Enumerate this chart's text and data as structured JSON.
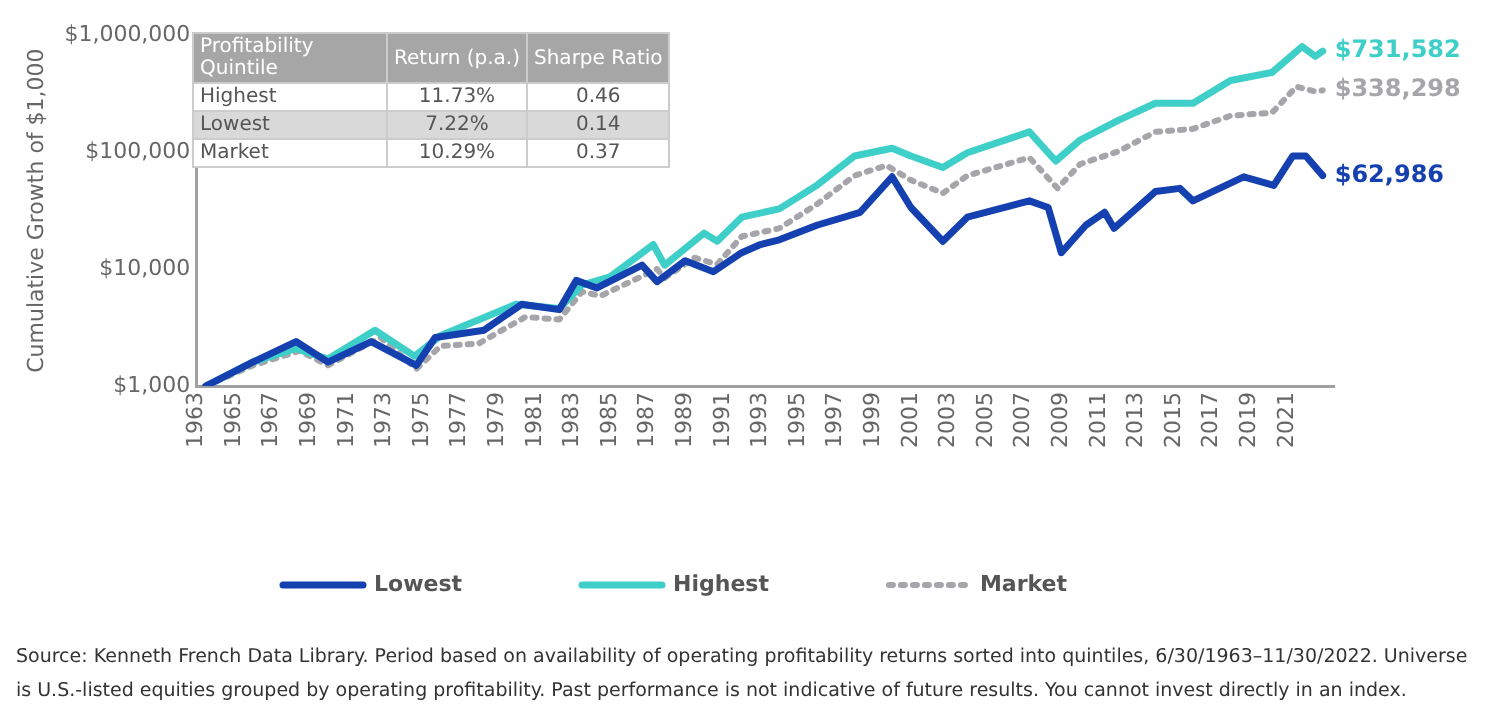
{
  "chart_data": {
    "type": "line",
    "ylabel": "Cumulative Growth of $1,000",
    "log": "y",
    "grid": false,
    "legend": "bottom",
    "marker": "none",
    "xlim": [
      1963,
      2023.5
    ],
    "xticks": [
      1963,
      1965,
      1967,
      1969,
      1971,
      1973,
      1975,
      1977,
      1979,
      1981,
      1983,
      1985,
      1987,
      1989,
      1991,
      1993,
      1995,
      1997,
      1999,
      2001,
      2003,
      2005,
      2007,
      2009,
      2011,
      2013,
      2015,
      2017,
      2019,
      2021
    ],
    "ylim": [
      1000,
      1000000
    ],
    "yticks": [
      {
        "value": 1000,
        "label": "$1,000"
      },
      {
        "value": 10000,
        "label": "$10,000"
      },
      {
        "value": 100000,
        "label": "$100,000"
      },
      {
        "value": 1000000,
        "label": "$1,000,000"
      }
    ],
    "series": [
      {
        "name": "Lowest",
        "color": "#1440b0",
        "line_style": "solid",
        "x": [
          1963.5,
          1966,
          1968.3,
          1970,
          1972.3,
          1974.7,
          1975.7,
          1978.3,
          1980.3,
          1982.3,
          1983.2,
          1984.3,
          1986.7,
          1987.5,
          1989,
          1990.5,
          1992,
          1993,
          1994,
          1996,
          1998.3,
          2000,
          2001,
          2002.7,
          2004,
          2007.3,
          2008.3,
          2009,
          2010.3,
          2011.3,
          2011.8,
          2014,
          2015.3,
          2016,
          2018.7,
          2020.3,
          2021.3,
          2022,
          2022.9
        ],
        "values": [
          1000,
          1600,
          2400,
          1600,
          2400,
          1500,
          2600,
          3000,
          5000,
          4500,
          8000,
          6900,
          10800,
          7800,
          11800,
          9500,
          13800,
          16200,
          17800,
          23700,
          30600,
          61500,
          33600,
          17300,
          27800,
          38300,
          33600,
          13800,
          23700,
          30600,
          22300,
          46000,
          49000,
          38300,
          61500,
          52000,
          92600,
          92600,
          62986
        ],
        "value_labels": [
          null,
          null,
          null,
          null,
          null,
          null,
          null,
          null,
          null,
          null,
          null,
          null,
          null,
          null,
          null,
          null,
          null,
          null,
          null,
          null,
          null,
          null,
          null,
          null,
          null,
          null,
          null,
          null,
          null,
          null,
          null,
          null,
          null,
          null,
          null,
          null,
          null,
          null,
          "$62,986"
        ]
      },
      {
        "name": "Highest",
        "color": "#3ecfc8",
        "line_style": "solid",
        "x": [
          1963.5,
          1966,
          1968.3,
          1970,
          1972.5,
          1974.6,
          1976,
          1980,
          1982.3,
          1983.5,
          1985,
          1987.3,
          1987.9,
          1990,
          1990.7,
          1992,
          1994,
          1996,
          1998,
          2000,
          2001,
          2002.7,
          2004,
          2007.3,
          2008.7,
          2010,
          2012,
          2014,
          2016,
          2018,
          2020.2,
          2021.8,
          2022.5,
          2022.9
        ],
        "values": [
          1000,
          1600,
          2100,
          1700,
          3000,
          1800,
          2700,
          5000,
          4600,
          7300,
          8600,
          16200,
          10800,
          20300,
          17300,
          27800,
          32700,
          52000,
          92600,
          108000,
          92600,
          74000,
          98700,
          149000,
          84000,
          127000,
          186000,
          262000,
          262000,
          410000,
          480000,
          800000,
          660000,
          731582
        ],
        "value_labels": [
          null,
          null,
          null,
          null,
          null,
          null,
          null,
          null,
          null,
          null,
          null,
          null,
          null,
          null,
          null,
          null,
          null,
          null,
          null,
          null,
          null,
          null,
          null,
          null,
          null,
          null,
          null,
          null,
          null,
          null,
          null,
          null,
          null,
          "$731,582"
        ]
      },
      {
        "name": "Market",
        "color": "#a6a6aa",
        "line_style": "dotted",
        "x": [
          1963.5,
          1966,
          1968.5,
          1970,
          1972.8,
          1974.7,
          1976,
          1978,
          1980.5,
          1982.3,
          1983.5,
          1984.5,
          1987.5,
          1987.9,
          1989.5,
          1990.7,
          1992,
          1994,
          1996,
          1998,
          1999.7,
          2001,
          2002.7,
          2004,
          2007.3,
          2008.8,
          2010,
          2012,
          2014,
          2016,
          2018,
          2020.2,
          2021.5,
          2022.5,
          2022.9
        ],
        "values": [
          1000,
          1500,
          2000,
          1500,
          2600,
          1400,
          2200,
          2300,
          3900,
          3700,
          6400,
          5900,
          10000,
          8400,
          12500,
          11000,
          19000,
          22300,
          35800,
          63000,
          77000,
          57600,
          44600,
          63000,
          89800,
          49000,
          79000,
          101000,
          149000,
          158000,
          205000,
          217000,
          363000,
          330000,
          338298
        ],
        "value_labels": [
          null,
          null,
          null,
          null,
          null,
          null,
          null,
          null,
          null,
          null,
          null,
          null,
          null,
          null,
          null,
          null,
          null,
          null,
          null,
          null,
          null,
          null,
          null,
          null,
          null,
          null,
          null,
          null,
          null,
          null,
          null,
          null,
          null,
          null,
          "$338,298"
        ]
      }
    ],
    "annotations": [
      "Profitability Quintile",
      "Return (p.a.)",
      "Sharpe Ratio",
      "Highest",
      "11.73%",
      "0.46",
      "Lowest",
      "7.22%",
      "0.14",
      "Market",
      "10.29%",
      "0.37",
      "Source: Kenneth French Data Library. Period based on availability of operating profitability returns sorted into quintiles, 6/30/1963–11/30/2022. Universe is U.S.-listed equities grouped by operating profitability. Past performance is not indicative of future results. You cannot invest directly in an index."
    ]
  }
}
